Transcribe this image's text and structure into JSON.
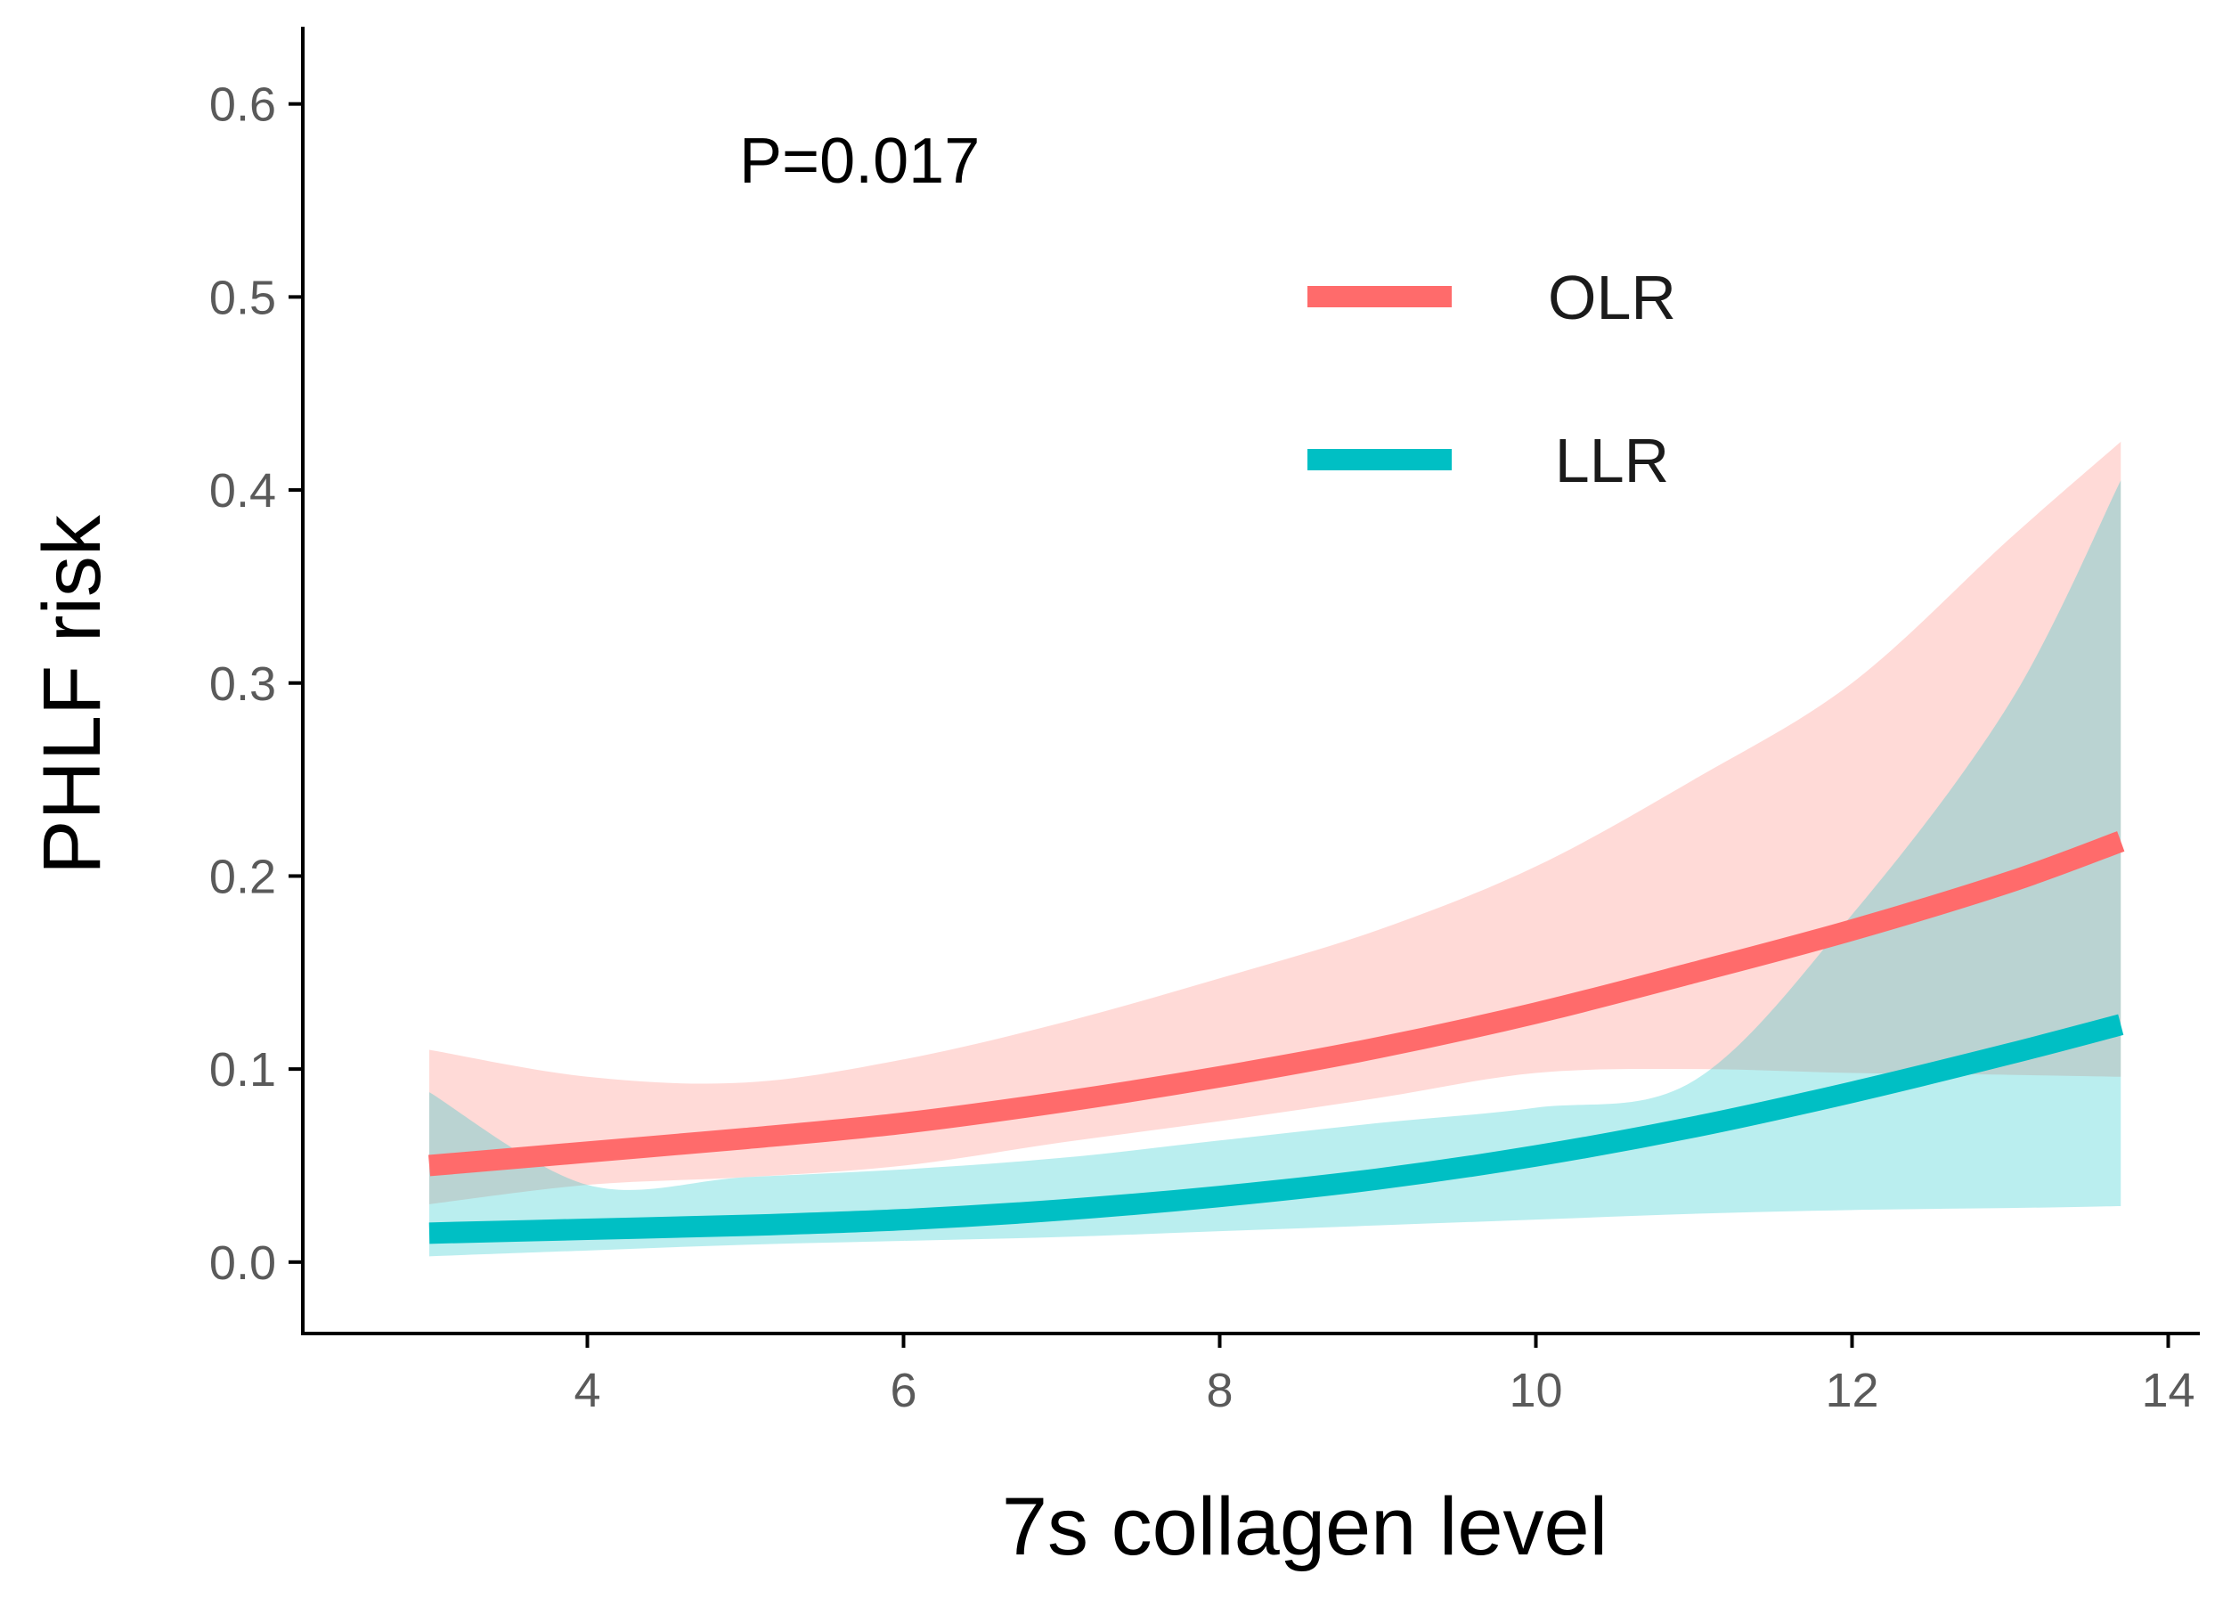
{
  "chart_data": {
    "type": "line",
    "title": "",
    "xlabel": "7s collagen level",
    "ylabel": "PHLF risk",
    "xlim": [
      2.2,
      14.2
    ],
    "ylim": [
      -0.037,
      0.64
    ],
    "xticks": [
      4,
      6,
      8,
      10,
      12,
      14
    ],
    "yticks": [
      0.0,
      0.1,
      0.2,
      0.3,
      0.4,
      0.5,
      0.6
    ],
    "xtick_labels": [
      "4",
      "6",
      "8",
      "10",
      "12",
      "14"
    ],
    "ytick_labels": [
      "0.0",
      "0.1",
      "0.2",
      "0.3",
      "0.4",
      "0.5",
      "0.6"
    ],
    "grid": false,
    "legend_position": "top-right",
    "annotation": "P=0.017",
    "series": [
      {
        "name": "OLR",
        "color": "#ff6b6b",
        "band_color": "#ffd6d3",
        "x": [
          3,
          4,
          5,
          6,
          7,
          8,
          9,
          10,
          11,
          12,
          13,
          13.7
        ],
        "y": [
          0.05,
          0.057,
          0.064,
          0.072,
          0.083,
          0.096,
          0.111,
          0.129,
          0.15,
          0.172,
          0.197,
          0.218
        ],
        "lower": [
          0.03,
          0.04,
          0.044,
          0.05,
          0.062,
          0.073,
          0.085,
          0.098,
          0.1,
          0.098,
          0.097,
          0.096
        ],
        "upper": [
          0.11,
          0.096,
          0.093,
          0.105,
          0.124,
          0.147,
          0.172,
          0.205,
          0.25,
          0.3,
          0.375,
          0.425
        ]
      },
      {
        "name": "LLR",
        "color": "#00bfc4",
        "band_color": "#b8eef0",
        "x": [
          3,
          4,
          5,
          6,
          7,
          8,
          9,
          10,
          11,
          12,
          13,
          13.7
        ],
        "y": [
          0.015,
          0.017,
          0.019,
          0.022,
          0.027,
          0.034,
          0.043,
          0.055,
          0.07,
          0.088,
          0.108,
          0.123
        ],
        "lower": [
          0.003,
          0.006,
          0.009,
          0.011,
          0.013,
          0.016,
          0.019,
          0.022,
          0.025,
          0.027,
          0.028,
          0.029
        ],
        "upper": [
          0.088,
          0.04,
          0.044,
          0.048,
          0.054,
          0.063,
          0.072,
          0.08,
          0.094,
          0.18,
          0.29,
          0.405
        ]
      }
    ]
  }
}
